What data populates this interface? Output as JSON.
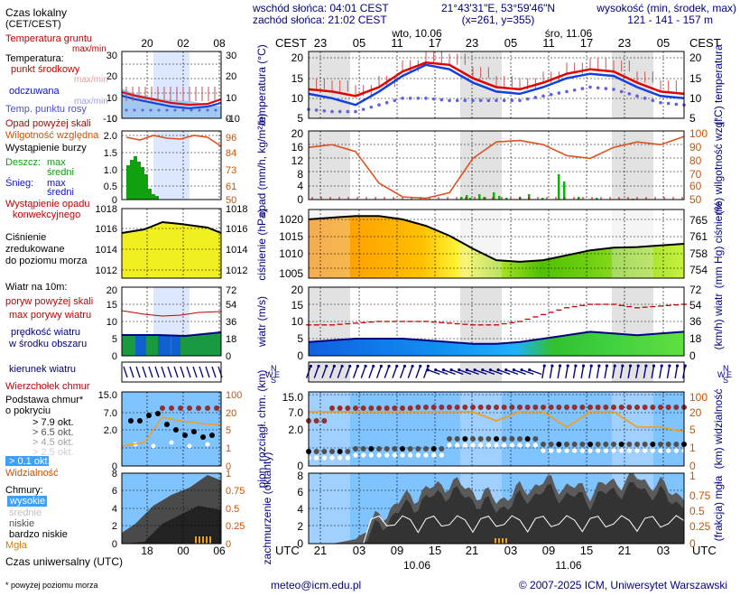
{
  "header": {
    "sunrise": "wschód słońca: 04:01 CEST",
    "sunset": "zachód słońca: 21:02 CEST",
    "coords": "21°43'31\"E, 53°59'46\"N",
    "grid": "(x=261, y=355)",
    "elev_title": "wysokość (min, środek, max)",
    "elev_values": "121 - 141 - 157 m"
  },
  "footer": {
    "email": "meteo@icm.edu.pl",
    "copyright": "© 2007-2025 ICM, Uniwersytet Warszawski",
    "note": "* powyżej poziomu morza",
    "utc_caption": "Czas uniwersalny (UTC)"
  },
  "time_axis": {
    "cest_label": "CEST",
    "utc_label": "UTC",
    "day1": "wto, 10.06",
    "day2": "śro, 11.06",
    "cest_ticks": [
      "23",
      "05",
      "11",
      "17",
      "23",
      "05",
      "11",
      "17",
      "23",
      "05"
    ],
    "utc_ticks": [
      "21",
      "03",
      "09",
      "15",
      "21",
      "03",
      "09",
      "15",
      "21",
      "03"
    ],
    "utc_dates": [
      "10.06",
      "11.06"
    ]
  },
  "legend": {
    "local_time": [
      "Czas lokalny",
      "(CET/CEST)"
    ],
    "local_ticks": [
      "20",
      "02",
      "08"
    ],
    "utc_ticks": [
      "18",
      "00",
      "06"
    ],
    "temp_lines": [
      "Temperatura gruntu",
      "max/min",
      "Temperatura:",
      "punkt środkowy",
      "max/min",
      "odczuwana",
      "max/min",
      "Temp. punktu rosy"
    ],
    "temp_ticks_l": [
      "30",
      "20",
      "10",
      "0",
      "-10"
    ],
    "temp_ticks_r": [
      "30",
      "20",
      "10",
      "0",
      "-10"
    ],
    "precip_lines": [
      "Opad powyżej skali",
      "Wilgotność względna",
      "Wystąpienie burzy",
      "Deszcz:",
      "max",
      "średni",
      "Śnieg:",
      "max",
      "średni",
      "Wystąpienie opadu",
      "konwekcyjnego"
    ],
    "precip_ticks_l": [
      "2.0",
      "1.5",
      "1.0",
      "0.5",
      "0"
    ],
    "precip_ticks_r": [
      "96",
      "84",
      "73",
      "61",
      "50"
    ],
    "press_lines": [
      "Ciśnienie",
      "zredukowane",
      "do poziomu morza"
    ],
    "press_ticks_l": [
      "1018",
      "1016",
      "1014",
      "1012"
    ],
    "press_ticks_r": [
      "1018",
      "1016",
      "1014",
      "1012"
    ],
    "wind_lines": [
      "Wiatr na 10m:",
      "poryw powyżej skali",
      "max porywy wiatru",
      "prędkość wiatru",
      "w środku obszaru"
    ],
    "wind_ticks_l": [
      "20",
      "15",
      "10",
      "5",
      "0"
    ],
    "wind_ticks_r": [
      "72",
      "54",
      "36",
      "18",
      "0"
    ],
    "dir_label": "kierunek wiatru",
    "cloud_lines": [
      "Wierzchołek chmur",
      "Podstawa chmur*",
      "o pokryciu",
      "> 7.9 okt.",
      "> 6.5 okt.",
      "> 4.5 okt.",
      "> 2.5 okt.",
      "> 0.1 okt.",
      "Widzialność"
    ],
    "cloud_ticks_l": [
      "15.0",
      "7.0",
      "2.0",
      "0"
    ],
    "cloud_ticks_r": [
      "100",
      "20",
      "5",
      "1",
      "0"
    ],
    "clouds2_lines": [
      "Chmury:",
      "wysokie",
      "średnie",
      "niskie",
      "bardzo niskie",
      "Mgła"
    ],
    "clouds2_ticks_l": [
      "8",
      "6",
      "4",
      "2",
      "0"
    ],
    "clouds2_ticks_r": [
      "1",
      "0.75",
      "0.5",
      "0.25",
      "0"
    ]
  },
  "panels": {
    "temp": {
      "ylabel_l": "temperatura (°C)",
      "ylabel_r": "(°C) temperatura",
      "ticks": [
        "20",
        "15",
        "10",
        "5"
      ]
    },
    "precip": {
      "ylabel_l": "opad (mm/h, kg/m²/h)",
      "ylabel_r": "(%) wilgotność wzgl.",
      "ticks_l": [
        "20",
        "16",
        "12",
        "8",
        "4",
        "0"
      ],
      "ticks_r": [
        "100",
        "90",
        "80",
        "70",
        "60",
        "50"
      ]
    },
    "press": {
      "ylabel_l": "ciśnienie (hPa)",
      "ylabel_r": "(mm Hg) ciśnienie",
      "ticks_l": [
        "1020",
        "1015",
        "1010",
        "1005"
      ],
      "ticks_r": [
        "765",
        "761",
        "758",
        "754"
      ]
    },
    "wind": {
      "ylabel_l": "wiatr (m/s)",
      "ylabel_r": "(km/h) wiatr",
      "ticks_l": [
        "20",
        "15",
        "10",
        "5",
        "0"
      ],
      "ticks_r": [
        "72",
        "54",
        "36",
        "18",
        "0"
      ]
    },
    "dir": {
      "compass": "N W E S"
    },
    "cloud": {
      "ylabel_l": "pion. rozciągł. chm. (km)",
      "ylabel_r": "(km) widzialność",
      "ticks_l": [
        "15.0",
        "7.0",
        "2.0",
        "0"
      ],
      "ticks_r": [
        "100",
        "20",
        "5",
        "1",
        "0"
      ]
    },
    "cover": {
      "ylabel_l": "zachmurzenie (oktanty)",
      "ylabel_r": "(frakcja) mgła",
      "ticks_l": [
        "8",
        "6",
        "4",
        "2",
        "0"
      ],
      "ticks_r": [
        "1",
        "0.75",
        "0.5",
        "0.25",
        "0"
      ]
    }
  },
  "colors": {
    "red": "#d00000",
    "blue": "#1010d0",
    "orange": "#e06020",
    "green": "#10a010",
    "navy": "#000080",
    "sky": "#a8d4ff"
  },
  "chart_data": [
    {
      "type": "line",
      "title": "temperatura",
      "x_hours_utc": [
        0,
        3,
        6,
        9,
        12,
        15,
        18,
        21,
        24,
        27,
        30,
        33,
        36,
        39,
        42,
        45,
        48
      ],
      "series": [
        {
          "name": "punkt środkowy",
          "values": [
            11.5,
            11,
            10,
            12,
            15.5,
            17.5,
            17,
            14,
            12,
            11.5,
            13,
            15,
            16,
            15.5,
            13,
            11,
            10.5
          ]
        },
        {
          "name": "odczuwana",
          "values": [
            10.5,
            9.5,
            8,
            11,
            14.5,
            17,
            16,
            13,
            11,
            10.5,
            12,
            14,
            15,
            14.5,
            12,
            10,
            9.5
          ]
        },
        {
          "name": "Temp. punktu rosy",
          "values": [
            7,
            6.5,
            6.5,
            8,
            9.5,
            9.5,
            9,
            9,
            9,
            9,
            10,
            11,
            12,
            11.5,
            10,
            8.5,
            8
          ]
        }
      ],
      "ylim": [
        5,
        20
      ]
    },
    {
      "type": "line",
      "title": "wilgotność względna",
      "x_hours_utc": [
        0,
        3,
        6,
        9,
        12,
        15,
        18,
        21,
        24,
        27,
        30,
        33,
        36,
        39,
        42,
        45,
        48
      ],
      "series": [
        {
          "name": "Wilgotność względna",
          "values": [
            88,
            90,
            85,
            62,
            52,
            51,
            55,
            80,
            92,
            93,
            90,
            82,
            80,
            88,
            92,
            90,
            96
          ]
        }
      ],
      "ylim": [
        50,
        100
      ]
    },
    {
      "type": "area",
      "title": "ciśnienie",
      "x_hours_utc": [
        0,
        3,
        6,
        9,
        12,
        15,
        18,
        21,
        24,
        27,
        30,
        33,
        36,
        39,
        42,
        45,
        48
      ],
      "series": [
        {
          "name": "Ciśnienie",
          "values": [
            1021,
            1021.5,
            1022,
            1022,
            1021,
            1019,
            1016,
            1012,
            1008.5,
            1008,
            1008.5,
            1010,
            1011.5,
            1012.3,
            1012.5,
            1013,
            1013.5
          ]
        }
      ],
      "ylim": [
        1003,
        1024
      ]
    },
    {
      "type": "area",
      "title": "wiatr",
      "x_hours_utc": [
        0,
        3,
        6,
        9,
        12,
        15,
        18,
        21,
        24,
        27,
        30,
        33,
        36,
        39,
        42,
        45,
        48
      ],
      "series": [
        {
          "name": "prędkość wiatru",
          "values": [
            4,
            4.5,
            5,
            5,
            5,
            4.5,
            4,
            3.5,
            3.5,
            4,
            5,
            6,
            7,
            6.5,
            6,
            6.5,
            7
          ]
        },
        {
          "name": "max porywy wiatru",
          "values": [
            9,
            9,
            9.5,
            10,
            10,
            10,
            9.5,
            9,
            9,
            10,
            12,
            14,
            15,
            15,
            14,
            14.5,
            15
          ]
        }
      ],
      "ylim": [
        0,
        20
      ]
    },
    {
      "type": "line",
      "title": "widzialność",
      "x_hours_utc": [
        0,
        3,
        6,
        9,
        12,
        15,
        18,
        21,
        24,
        27,
        30,
        33,
        36,
        39,
        42,
        45,
        48
      ],
      "series": [
        {
          "name": "Widzialność",
          "values": [
            20,
            20,
            20,
            20,
            20,
            20,
            20,
            20,
            8,
            20,
            20,
            6,
            20,
            20,
            5,
            5,
            4
          ]
        }
      ],
      "ylim": [
        0,
        100
      ]
    },
    {
      "type": "area",
      "title": "zachmurzenie",
      "x_hours_utc": [
        0,
        3,
        6,
        9,
        12,
        15,
        18,
        21,
        24,
        27,
        30,
        33,
        36,
        39,
        42,
        45,
        48
      ],
      "series": [
        {
          "name": "niskie",
          "values": [
            0,
            0,
            0.5,
            3,
            5,
            6,
            7,
            6,
            5,
            6,
            7,
            6.5,
            6,
            7,
            7.5,
            6.5,
            5.5
          ]
        }
      ],
      "ylim": [
        0,
        8
      ]
    }
  ]
}
